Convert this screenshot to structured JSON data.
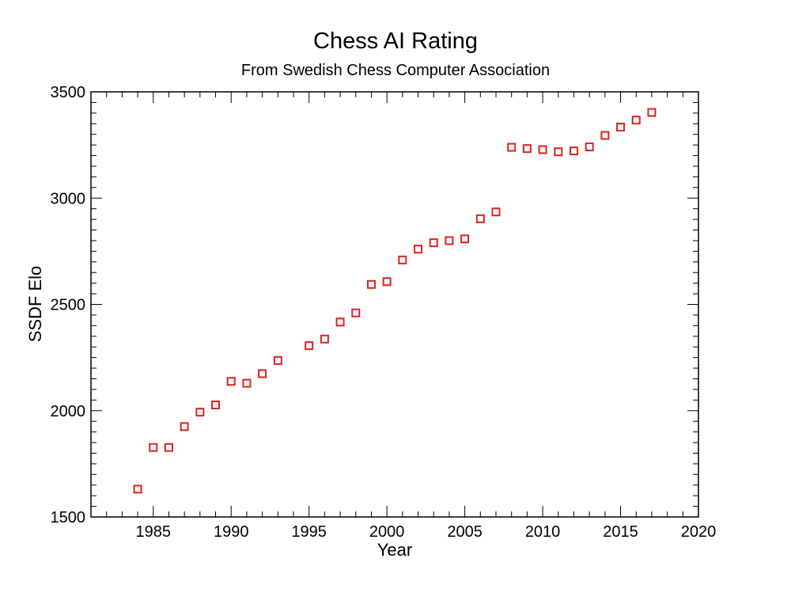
{
  "chart_data": {
    "type": "scatter",
    "title": "Chess AI Rating",
    "subtitle": "From Swedish Chess Computer Association",
    "xlabel": "Year",
    "ylabel": "SSDF Elo",
    "xlim": [
      1981,
      2020
    ],
    "ylim": [
      1500,
      3500
    ],
    "xticks": [
      1985,
      1990,
      1995,
      2000,
      2005,
      2010,
      2015,
      2020
    ],
    "yticks": [
      1500,
      2000,
      2500,
      3000,
      3500
    ],
    "marker": "open-square",
    "marker_color": "#e02020",
    "series": [
      {
        "name": "SSDF Elo",
        "x": [
          1984,
          1985,
          1986,
          1987,
          1988,
          1989,
          1990,
          1991,
          1992,
          1993,
          1995,
          1996,
          1997,
          1998,
          1999,
          2000,
          2001,
          2002,
          2003,
          2004,
          2005,
          2006,
          2007,
          2008,
          2009,
          2010,
          2011,
          2012,
          2013,
          2014,
          2015,
          2016,
          2017
        ],
        "y": [
          1631,
          1827,
          1827,
          1925,
          1993,
          2027,
          2138,
          2129,
          2174,
          2236,
          2306,
          2337,
          2417,
          2460,
          2594,
          2607,
          2709,
          2760,
          2790,
          2800,
          2808,
          2903,
          2935,
          3239,
          3233,
          3228,
          3218,
          3222,
          3241,
          3295,
          3334,
          3367,
          3403
        ]
      }
    ]
  }
}
